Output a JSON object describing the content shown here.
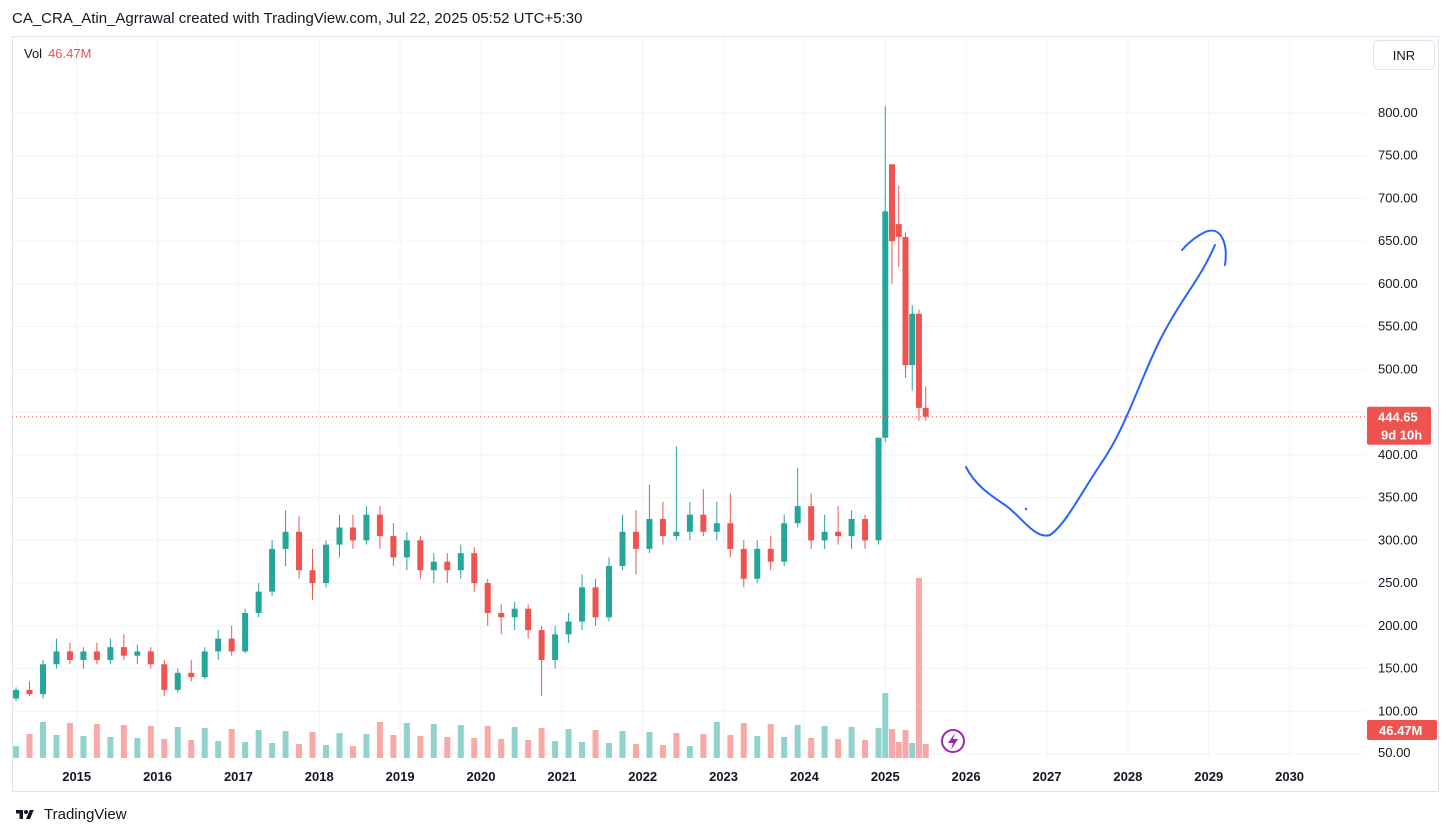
{
  "header": {
    "caption": "CA_CRA_Atin_Agrrawal created with TradingView.com, Jul 22, 2025 05:52 UTC+5:30"
  },
  "legend": {
    "label": "Vol",
    "value": "46.47M"
  },
  "currency_button": "INR",
  "footer": {
    "brand": "TradingView"
  },
  "colors": {
    "up": "#26a69a",
    "down": "#ef5350",
    "vol_up": "#92d2cc",
    "vol_down": "#f7a9a7",
    "drawing": "#2962ff",
    "grid": "#f0f3fa"
  },
  "chart_data": {
    "type": "candlestick",
    "interval": "monthly",
    "x_ticks": [
      "2015",
      "2016",
      "2017",
      "2018",
      "2019",
      "2020",
      "2021",
      "2022",
      "2023",
      "2024",
      "2025",
      "2026",
      "2027",
      "2028",
      "2029",
      "2030"
    ],
    "y_ticks": [
      "50.00",
      "100.00",
      "150.00",
      "200.00",
      "250.00",
      "300.00",
      "350.00",
      "400.00",
      "450.00",
      "500.00",
      "550.00",
      "600.00",
      "650.00",
      "700.00",
      "750.00",
      "800.00"
    ],
    "ylim": [
      50,
      815
    ],
    "price_label": {
      "value": "444.65",
      "countdown": "9d 10h"
    },
    "volume_label": "46.47M",
    "series": [
      {
        "d": "2014-04",
        "o": 115,
        "h": 128,
        "l": 112,
        "c": 125,
        "v": "up"
      },
      {
        "d": "2014-06",
        "o": 125,
        "h": 135,
        "l": 118,
        "c": 120,
        "v": "down"
      },
      {
        "d": "2014-08",
        "o": 120,
        "h": 160,
        "l": 115,
        "c": 155,
        "v": "up"
      },
      {
        "d": "2014-10",
        "o": 155,
        "h": 185,
        "l": 150,
        "c": 170,
        "v": "up"
      },
      {
        "d": "2014-12",
        "o": 170,
        "h": 180,
        "l": 155,
        "c": 160,
        "v": "down"
      },
      {
        "d": "2015-02",
        "o": 160,
        "h": 175,
        "l": 150,
        "c": 170,
        "v": "up"
      },
      {
        "d": "2015-04",
        "o": 170,
        "h": 180,
        "l": 155,
        "c": 160,
        "v": "down"
      },
      {
        "d": "2015-06",
        "o": 160,
        "h": 185,
        "l": 155,
        "c": 175,
        "v": "up"
      },
      {
        "d": "2015-08",
        "o": 175,
        "h": 190,
        "l": 160,
        "c": 165,
        "v": "down"
      },
      {
        "d": "2015-10",
        "o": 165,
        "h": 178,
        "l": 155,
        "c": 170,
        "v": "up"
      },
      {
        "d": "2015-12",
        "o": 170,
        "h": 175,
        "l": 150,
        "c": 155,
        "v": "down"
      },
      {
        "d": "2016-02",
        "o": 155,
        "h": 160,
        "l": 118,
        "c": 125,
        "v": "down"
      },
      {
        "d": "2016-04",
        "o": 125,
        "h": 150,
        "l": 122,
        "c": 145,
        "v": "up"
      },
      {
        "d": "2016-06",
        "o": 145,
        "h": 160,
        "l": 135,
        "c": 140,
        "v": "down"
      },
      {
        "d": "2016-08",
        "o": 140,
        "h": 175,
        "l": 138,
        "c": 170,
        "v": "up"
      },
      {
        "d": "2016-10",
        "o": 170,
        "h": 195,
        "l": 160,
        "c": 185,
        "v": "up"
      },
      {
        "d": "2016-12",
        "o": 185,
        "h": 200,
        "l": 165,
        "c": 170,
        "v": "down"
      },
      {
        "d": "2017-02",
        "o": 170,
        "h": 220,
        "l": 168,
        "c": 215,
        "v": "up"
      },
      {
        "d": "2017-04",
        "o": 215,
        "h": 250,
        "l": 210,
        "c": 240,
        "v": "up"
      },
      {
        "d": "2017-06",
        "o": 240,
        "h": 300,
        "l": 235,
        "c": 290,
        "v": "up"
      },
      {
        "d": "2017-08",
        "o": 290,
        "h": 335,
        "l": 270,
        "c": 310,
        "v": "up"
      },
      {
        "d": "2017-10",
        "o": 310,
        "h": 328,
        "l": 255,
        "c": 265,
        "v": "down"
      },
      {
        "d": "2017-12",
        "o": 265,
        "h": 290,
        "l": 230,
        "c": 250,
        "v": "down"
      },
      {
        "d": "2018-02",
        "o": 250,
        "h": 300,
        "l": 245,
        "c": 295,
        "v": "up"
      },
      {
        "d": "2018-04",
        "o": 295,
        "h": 330,
        "l": 280,
        "c": 315,
        "v": "up"
      },
      {
        "d": "2018-06",
        "o": 315,
        "h": 330,
        "l": 290,
        "c": 300,
        "v": "down"
      },
      {
        "d": "2018-08",
        "o": 300,
        "h": 340,
        "l": 295,
        "c": 330,
        "v": "up"
      },
      {
        "d": "2018-10",
        "o": 330,
        "h": 340,
        "l": 290,
        "c": 305,
        "v": "down"
      },
      {
        "d": "2018-12",
        "o": 305,
        "h": 320,
        "l": 270,
        "c": 280,
        "v": "down"
      },
      {
        "d": "2019-02",
        "o": 280,
        "h": 310,
        "l": 265,
        "c": 300,
        "v": "up"
      },
      {
        "d": "2019-04",
        "o": 300,
        "h": 305,
        "l": 255,
        "c": 265,
        "v": "down"
      },
      {
        "d": "2019-06",
        "o": 265,
        "h": 285,
        "l": 250,
        "c": 275,
        "v": "up"
      },
      {
        "d": "2019-08",
        "o": 275,
        "h": 285,
        "l": 250,
        "c": 265,
        "v": "down"
      },
      {
        "d": "2019-10",
        "o": 265,
        "h": 295,
        "l": 255,
        "c": 285,
        "v": "up"
      },
      {
        "d": "2019-12",
        "o": 285,
        "h": 292,
        "l": 240,
        "c": 250,
        "v": "down"
      },
      {
        "d": "2020-02",
        "o": 250,
        "h": 255,
        "l": 200,
        "c": 215,
        "v": "down"
      },
      {
        "d": "2020-04",
        "o": 215,
        "h": 225,
        "l": 190,
        "c": 210,
        "v": "down"
      },
      {
        "d": "2020-06",
        "o": 210,
        "h": 228,
        "l": 195,
        "c": 220,
        "v": "up"
      },
      {
        "d": "2020-08",
        "o": 220,
        "h": 225,
        "l": 185,
        "c": 195,
        "v": "down"
      },
      {
        "d": "2020-10",
        "o": 195,
        "h": 200,
        "l": 118,
        "c": 160,
        "v": "down"
      },
      {
        "d": "2020-12",
        "o": 160,
        "h": 200,
        "l": 150,
        "c": 190,
        "v": "up"
      },
      {
        "d": "2021-02",
        "o": 190,
        "h": 215,
        "l": 180,
        "c": 205,
        "v": "up"
      },
      {
        "d": "2021-04",
        "o": 205,
        "h": 260,
        "l": 195,
        "c": 245,
        "v": "up"
      },
      {
        "d": "2021-06",
        "o": 245,
        "h": 255,
        "l": 200,
        "c": 210,
        "v": "down"
      },
      {
        "d": "2021-08",
        "o": 210,
        "h": 280,
        "l": 205,
        "c": 270,
        "v": "up"
      },
      {
        "d": "2021-10",
        "o": 270,
        "h": 330,
        "l": 265,
        "c": 310,
        "v": "up"
      },
      {
        "d": "2021-12",
        "o": 310,
        "h": 335,
        "l": 260,
        "c": 290,
        "v": "down"
      },
      {
        "d": "2022-02",
        "o": 290,
        "h": 365,
        "l": 285,
        "c": 325,
        "v": "up"
      },
      {
        "d": "2022-04",
        "o": 325,
        "h": 345,
        "l": 295,
        "c": 305,
        "v": "down"
      },
      {
        "d": "2022-06",
        "o": 305,
        "h": 410,
        "l": 300,
        "c": 310,
        "v": "down"
      },
      {
        "d": "2022-08",
        "o": 310,
        "h": 345,
        "l": 300,
        "c": 330,
        "v": "up"
      },
      {
        "d": "2022-10",
        "o": 330,
        "h": 360,
        "l": 305,
        "c": 310,
        "v": "down"
      },
      {
        "d": "2022-12",
        "o": 310,
        "h": 345,
        "l": 300,
        "c": 320,
        "v": "up"
      },
      {
        "d": "2023-02",
        "o": 320,
        "h": 355,
        "l": 280,
        "c": 290,
        "v": "down"
      },
      {
        "d": "2023-04",
        "o": 290,
        "h": 300,
        "l": 245,
        "c": 255,
        "v": "down"
      },
      {
        "d": "2023-06",
        "o": 255,
        "h": 300,
        "l": 250,
        "c": 290,
        "v": "up"
      },
      {
        "d": "2023-08",
        "o": 290,
        "h": 305,
        "l": 265,
        "c": 275,
        "v": "down"
      },
      {
        "d": "2023-10",
        "o": 275,
        "h": 330,
        "l": 270,
        "c": 320,
        "v": "up"
      },
      {
        "d": "2023-12",
        "o": 320,
        "h": 385,
        "l": 315,
        "c": 340,
        "v": "up"
      },
      {
        "d": "2024-02",
        "o": 340,
        "h": 355,
        "l": 290,
        "c": 300,
        "v": "down"
      },
      {
        "d": "2024-04",
        "o": 300,
        "h": 330,
        "l": 290,
        "c": 310,
        "v": "up"
      },
      {
        "d": "2024-06",
        "o": 310,
        "h": 340,
        "l": 295,
        "c": 305,
        "v": "down"
      },
      {
        "d": "2024-08",
        "o": 305,
        "h": 335,
        "l": 290,
        "c": 325,
        "v": "up"
      },
      {
        "d": "2024-10",
        "o": 325,
        "h": 330,
        "l": 290,
        "c": 300,
        "v": "down"
      },
      {
        "d": "2024-12",
        "o": 300,
        "h": 420,
        "l": 295,
        "c": 420,
        "v": "up"
      },
      {
        "d": "2025-01",
        "o": 420,
        "h": 808,
        "l": 415,
        "c": 685,
        "v": "up"
      },
      {
        "d": "2025-02",
        "o": 740,
        "h": 740,
        "l": 600,
        "c": 650,
        "v": "down"
      },
      {
        "d": "2025-03",
        "o": 670,
        "h": 715,
        "l": 620,
        "c": 655,
        "v": "down"
      },
      {
        "d": "2025-04",
        "o": 655,
        "h": 660,
        "l": 490,
        "c": 505,
        "v": "down"
      },
      {
        "d": "2025-05",
        "o": 505,
        "h": 575,
        "l": 475,
        "c": 565,
        "v": "up"
      },
      {
        "d": "2025-06",
        "o": 565,
        "h": 570,
        "l": 440,
        "c": 455,
        "v": "down"
      },
      {
        "d": "2025-07",
        "o": 455,
        "h": 480,
        "l": 440,
        "c": 444.65,
        "v": "down"
      }
    ]
  }
}
